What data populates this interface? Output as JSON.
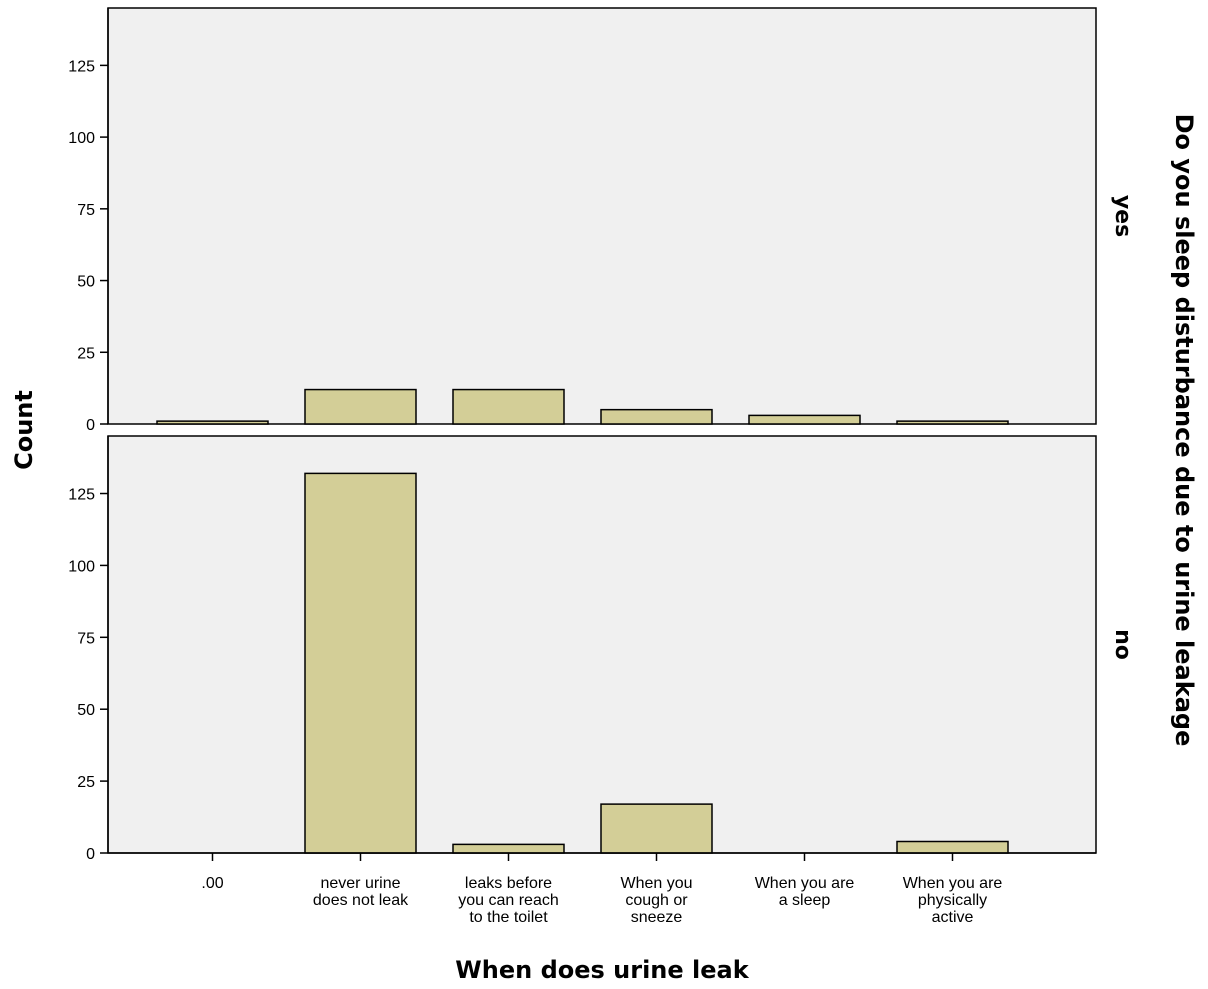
{
  "chart_data": {
    "type": "bar",
    "xlabel": "When does urine leak",
    "ylabel": "Count",
    "panel_variable": "Do you sleep disturbance due to urine leakage",
    "categories": [
      [
        ".00"
      ],
      [
        "never urine",
        "does not leak"
      ],
      [
        "leaks before",
        "you can reach",
        "to the toilet"
      ],
      [
        "When you",
        "cough or",
        "sneeze"
      ],
      [
        "When you are",
        "a sleep"
      ],
      [
        "When you are",
        "physically",
        "active"
      ]
    ],
    "ylim": [
      0,
      145
    ],
    "yticks": [
      0,
      25,
      50,
      75,
      100,
      125
    ],
    "grid": false,
    "panels": [
      {
        "name": "yes",
        "values": [
          1,
          12,
          12,
          5,
          3,
          1
        ]
      },
      {
        "name": "no",
        "values": [
          0,
          132,
          3,
          17,
          0,
          4
        ]
      }
    ],
    "colors": {
      "bar_fill": "#d3ce97",
      "bar_stroke": "#000000",
      "panel_background": "#f0f0f0",
      "axis": "#000000"
    }
  }
}
